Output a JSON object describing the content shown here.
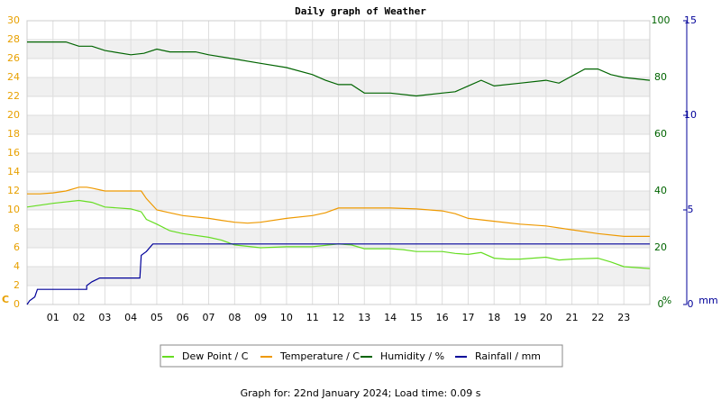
{
  "chart_data": {
    "type": "line",
    "title": "Daily graph of Weather",
    "footer": "Graph for: 22nd January 2024; Load time: 0.09 s",
    "y_unit": "C",
    "y2_unit": "%",
    "y3_unit": "mm",
    "xlim": [
      0,
      24
    ],
    "xticks": [
      {
        "value": 1,
        "label": "01"
      },
      {
        "value": 2,
        "label": "02"
      },
      {
        "value": 3,
        "label": "03"
      },
      {
        "value": 4,
        "label": "04"
      },
      {
        "value": 5,
        "label": "05"
      },
      {
        "value": 6,
        "label": "06"
      },
      {
        "value": 7,
        "label": "07"
      },
      {
        "value": 8,
        "label": "08"
      },
      {
        "value": 9,
        "label": "09"
      },
      10,
      11,
      12,
      13,
      14,
      15,
      16,
      17,
      18,
      19,
      20,
      21,
      22,
      23
    ],
    "ylim": [
      0,
      30
    ],
    "yticks": [
      0,
      2,
      4,
      6,
      8,
      10,
      12,
      14,
      16,
      18,
      20,
      22,
      24,
      26,
      28,
      30
    ],
    "y_color": "#e8a000",
    "y2lim": [
      0,
      100
    ],
    "y2ticks": [
      0,
      20,
      40,
      60,
      80,
      100
    ],
    "y2_color": "#006400",
    "y3lim": [
      0,
      15
    ],
    "y3ticks": [
      0,
      5,
      10,
      15
    ],
    "y3_color": "#000099",
    "grid": true,
    "series": [
      {
        "name": "Dew Point / C",
        "color": "#66dd22",
        "axis": "y",
        "x": [
          0,
          1,
          2,
          2.5,
          3,
          4,
          4.4,
          4.6,
          5,
          5.5,
          6,
          7,
          7.5,
          8,
          9,
          10,
          11,
          12,
          12.5,
          13,
          14,
          14.5,
          15,
          16,
          16.5,
          17,
          17.5,
          18,
          18.5,
          19,
          20,
          20.5,
          21,
          22,
          22.5,
          23,
          24
        ],
        "values": [
          10.3,
          10.7,
          11.0,
          10.8,
          10.3,
          10.1,
          9.8,
          9.0,
          8.5,
          7.8,
          7.5,
          7.1,
          6.8,
          6.3,
          6.0,
          6.1,
          6.1,
          6.4,
          6.3,
          5.9,
          5.9,
          5.8,
          5.6,
          5.6,
          5.4,
          5.3,
          5.5,
          4.9,
          4.8,
          4.8,
          5.0,
          4.7,
          4.8,
          4.9,
          4.5,
          4.0,
          3.8
        ]
      },
      {
        "name": "Temperature / C",
        "color": "#ee9900",
        "axis": "y",
        "x": [
          0,
          0.5,
          1,
          1.5,
          2,
          2.3,
          2.5,
          3,
          3.5,
          4,
          4.4,
          4.6,
          5,
          5.5,
          6,
          7,
          7.5,
          8,
          8.5,
          9,
          10,
          11,
          11.5,
          12,
          13,
          14,
          15,
          16,
          16.5,
          17,
          18,
          19,
          20,
          21,
          22,
          23,
          24
        ],
        "values": [
          11.7,
          11.7,
          11.8,
          12.0,
          12.4,
          12.4,
          12.3,
          12.0,
          12.0,
          12.0,
          12.0,
          11.2,
          10.0,
          9.7,
          9.4,
          9.1,
          8.9,
          8.7,
          8.6,
          8.7,
          9.1,
          9.4,
          9.7,
          10.2,
          10.2,
          10.2,
          10.1,
          9.9,
          9.6,
          9.1,
          8.8,
          8.5,
          8.3,
          7.9,
          7.5,
          7.2,
          7.2
        ]
      },
      {
        "name": "Humidity / %",
        "color": "#006400",
        "axis": "y2",
        "x": [
          0,
          1.5,
          2,
          2.5,
          3,
          4,
          4.5,
          5,
          5.5,
          6.5,
          7,
          8,
          9,
          10,
          11,
          11.5,
          12,
          12.5,
          13,
          14,
          15,
          16,
          16.5,
          17,
          17.5,
          18,
          19,
          20,
          20.5,
          21,
          21.5,
          22,
          22.5,
          23,
          24
        ],
        "values": [
          92.5,
          92.5,
          91,
          91,
          89.5,
          88,
          88.5,
          90,
          89,
          89,
          88,
          86.5,
          85,
          83.5,
          81,
          79,
          77.5,
          77.5,
          74.5,
          74.5,
          73.5,
          74.5,
          75,
          77,
          79,
          77,
          78,
          79,
          78,
          80.5,
          83,
          83,
          81,
          80,
          79
        ]
      },
      {
        "name": "Rainfall / mm",
        "color": "#000099",
        "axis": "y3",
        "x": [
          0,
          0.1,
          0.3,
          0.4,
          2.3,
          2.3,
          2.5,
          2.8,
          4.35,
          4.4,
          4.6,
          4.85,
          24
        ],
        "values": [
          0,
          0.2,
          0.4,
          0.8,
          0.8,
          1.0,
          1.2,
          1.4,
          1.4,
          2.6,
          2.8,
          3.2,
          3.2
        ]
      }
    ]
  }
}
